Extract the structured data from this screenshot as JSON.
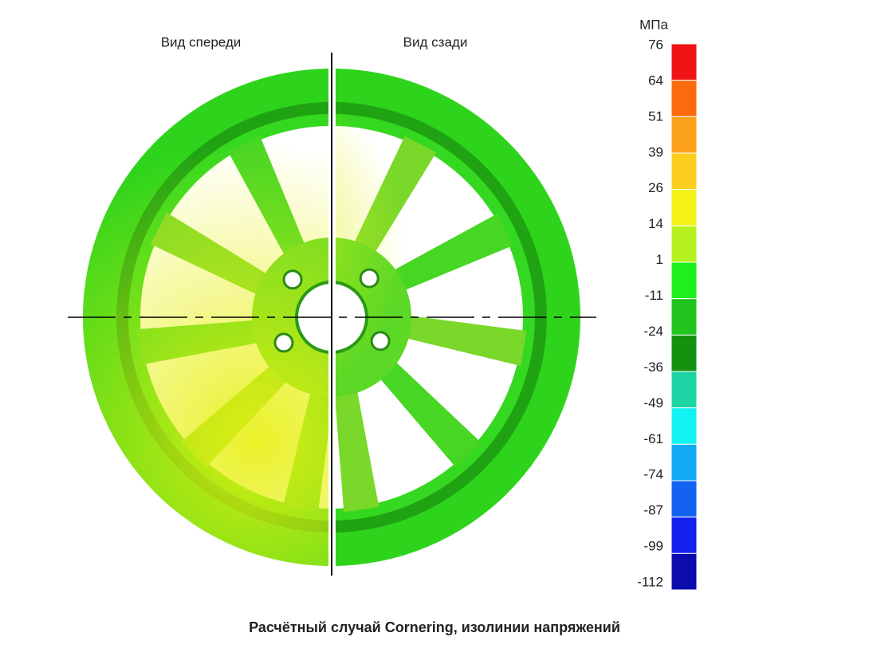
{
  "views": {
    "front": "Вид спереди",
    "back": "Вид сзади"
  },
  "legend": {
    "unit": "МПа",
    "ticks": [
      "76",
      "64",
      "51",
      "39",
      "26",
      "14",
      "1",
      "-11",
      "-24",
      "-36",
      "-49",
      "-61",
      "-74",
      "-87",
      "-99",
      "-112"
    ],
    "colors": [
      "#f01414",
      "#fb6a0c",
      "#fca21a",
      "#fccf1e",
      "#f4f214",
      "#b6f01e",
      "#1ef01e",
      "#22c41e",
      "#13920f",
      "#1cd4a4",
      "#12f2f2",
      "#12aaf2",
      "#1462f2",
      "#1420f0",
      "#0c0cae"
    ]
  },
  "caption": "Расчётный случай Cornering, изолинии напряжений"
}
